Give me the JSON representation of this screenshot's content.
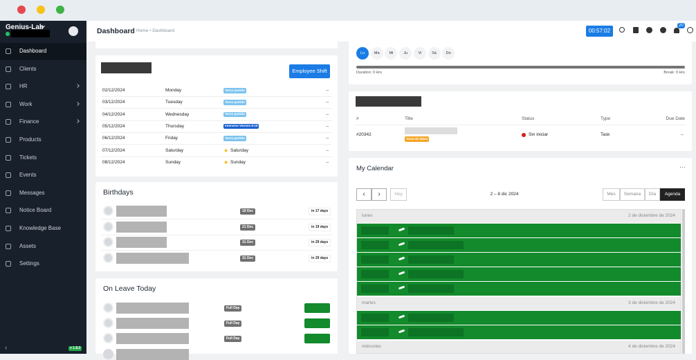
{
  "sidebar": {
    "brand": "Genius-Lab",
    "menu": [
      "Dashboard",
      "Clients",
      "HR",
      "Work",
      "Finance",
      "Products",
      "Tickets",
      "Events",
      "Messages",
      "Notice Board",
      "Knowledge Base",
      "Assets",
      "Settings"
    ],
    "version": "v 1.8.3"
  },
  "header": {
    "title": "Dashboard",
    "breadcrumb": "Home • Dashboard",
    "timer": "00:57:02",
    "notifications": "20"
  },
  "shift": {
    "button": "Employee Shift",
    "rows": [
      {
        "date": "02/12/2024",
        "day": "Monday",
        "shift": "Turno partido",
        "action": "--"
      },
      {
        "date": "03/12/2024",
        "day": "Tuesday",
        "shift": "Turno partido",
        "action": "--"
      },
      {
        "date": "04/12/2024",
        "day": "Wednesday",
        "shift": "Turno partido",
        "action": "--"
      },
      {
        "date": "05/12/2024",
        "day": "Thursday",
        "shift": "Intensivo Viernes 8-15",
        "action": "--"
      },
      {
        "date": "06/12/2024",
        "day": "Friday",
        "shift": "Turno partido",
        "action": "--"
      },
      {
        "date": "07/12/2024",
        "day": "Saturday",
        "shift": "Saturday",
        "action": "--"
      },
      {
        "date": "08/12/2024",
        "day": "Sunday",
        "shift": "Sunday",
        "action": "--"
      }
    ]
  },
  "birthdays": {
    "title": "Birthdays",
    "rows": [
      {
        "date": "19 Dec",
        "in": "in 17 days"
      },
      {
        "date": "21 Dec",
        "in": "in 19 days"
      },
      {
        "date": "31 Dec",
        "in": "in 29 days"
      },
      {
        "date": "31 Dec",
        "in": "in 29 days"
      }
    ]
  },
  "leave": {
    "title": "On Leave Today",
    "rows": [
      "Full Day",
      "Full Day",
      "Full Day"
    ]
  },
  "attendance": {
    "days": [
      "Lu",
      "Ma",
      "Mi",
      "Ju",
      "Vi",
      "Sá",
      "Do"
    ],
    "duration": "Duration: 0 Hrs",
    "break": "Break: 0 Hrs"
  },
  "tasks": {
    "columns": [
      "#",
      "Title",
      "Status",
      "Type",
      "Due Date"
    ],
    "rows": [
      {
        "id": "#20342",
        "label": "Toma de datos",
        "status": "Sin iniciar",
        "type": "Task",
        "due": "--"
      }
    ]
  },
  "calendar": {
    "title": "My Calendar",
    "today": "Hoy",
    "range": "2 – 8 dic 2024",
    "views": [
      "Mes",
      "Semana",
      "Día",
      "Agenda"
    ],
    "groups": [
      {
        "day": "lunes",
        "date": "2 de diciembre de 2024"
      },
      {
        "day": "martes",
        "date": "3 de diciembre de 2024"
      },
      {
        "day": "miércoles",
        "date": "4 de diciembre de 2024"
      }
    ]
  }
}
